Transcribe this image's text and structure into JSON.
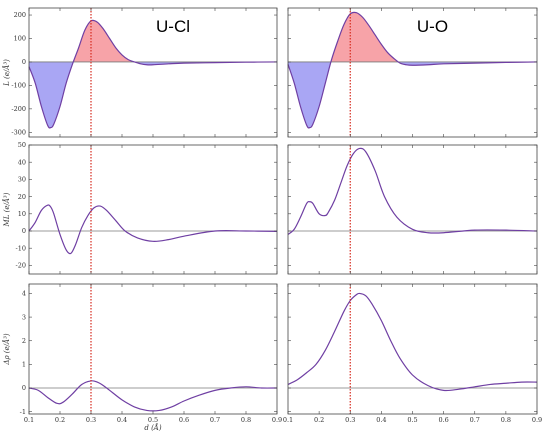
{
  "colors": {
    "curve": "#6f3fa3",
    "positive_fill": "#f7a3a8",
    "negative_fill": "#a9a6f4",
    "cutoff": "#d62a1e",
    "zero_line": "#7a7a7a",
    "frame": "#444444"
  },
  "chart_data": [
    {
      "id": "ucl-l",
      "type": "area",
      "title": "U-Cl",
      "ylabel": "L (e/Å³)",
      "xlabel": "",
      "xlim": [
        0.1,
        0.9
      ],
      "ylim": [
        -320,
        230
      ],
      "xticks": [],
      "yticks": [
        200,
        100,
        0,
        -100,
        -200,
        -300
      ],
      "cutoff_x": 0.3,
      "filled": true,
      "x": [
        0.1,
        0.12,
        0.14,
        0.16,
        0.17,
        0.18,
        0.2,
        0.22,
        0.24,
        0.26,
        0.28,
        0.3,
        0.32,
        0.34,
        0.36,
        0.38,
        0.4,
        0.42,
        0.44,
        0.46,
        0.48,
        0.5,
        0.55,
        0.6,
        0.7,
        0.8,
        0.9
      ],
      "y": [
        -20,
        -90,
        -190,
        -270,
        -280,
        -265,
        -190,
        -90,
        -10,
        60,
        135,
        175,
        170,
        140,
        100,
        60,
        30,
        10,
        0,
        -8,
        -12,
        -12,
        -8,
        -5,
        -3,
        -1,
        0
      ]
    },
    {
      "id": "uo-l",
      "type": "area",
      "title": "U-O",
      "ylabel": "",
      "xlabel": "",
      "xlim": [
        0.1,
        0.9
      ],
      "ylim": [
        -320,
        230
      ],
      "xticks": [],
      "yticks": [],
      "cutoff_x": 0.3,
      "filled": true,
      "x": [
        0.1,
        0.12,
        0.14,
        0.16,
        0.17,
        0.18,
        0.2,
        0.22,
        0.24,
        0.26,
        0.28,
        0.3,
        0.32,
        0.34,
        0.36,
        0.38,
        0.4,
        0.42,
        0.44,
        0.46,
        0.48,
        0.5,
        0.55,
        0.6,
        0.7,
        0.8,
        0.9
      ],
      "y": [
        -10,
        -90,
        -190,
        -270,
        -280,
        -265,
        -190,
        -90,
        10,
        90,
        160,
        205,
        210,
        190,
        155,
        115,
        75,
        40,
        15,
        -5,
        -12,
        -14,
        -12,
        -8,
        -5,
        -2,
        0
      ]
    },
    {
      "id": "ucl-m",
      "type": "line",
      "title": "",
      "ylabel": "ML (e/Å³)",
      "xlabel": "",
      "xlim": [
        0.1,
        0.9
      ],
      "ylim": [
        -25,
        50
      ],
      "xticks": [],
      "yticks": [
        50,
        40,
        30,
        20,
        10,
        0,
        -10,
        -20
      ],
      "cutoff_x": 0.3,
      "filled": false,
      "x": [
        0.1,
        0.12,
        0.14,
        0.16,
        0.17,
        0.18,
        0.2,
        0.22,
        0.235,
        0.25,
        0.27,
        0.29,
        0.31,
        0.33,
        0.35,
        0.38,
        0.41,
        0.45,
        0.5,
        0.55,
        0.6,
        0.7,
        0.8,
        0.9
      ],
      "y": [
        0,
        5,
        12,
        15,
        14,
        10,
        -2,
        -11,
        -13,
        -8,
        2,
        9,
        13.5,
        14.5,
        12,
        6,
        0,
        -4,
        -6,
        -5,
        -3,
        0,
        0,
        -0.2
      ]
    },
    {
      "id": "uo-m",
      "type": "line",
      "title": "",
      "ylabel": "",
      "xlabel": "",
      "xlim": [
        0.1,
        0.9
      ],
      "ylim": [
        -25,
        50
      ],
      "xticks": [],
      "yticks": [],
      "cutoff_x": 0.3,
      "filled": false,
      "x": [
        0.1,
        0.12,
        0.14,
        0.16,
        0.17,
        0.18,
        0.2,
        0.22,
        0.23,
        0.25,
        0.27,
        0.29,
        0.31,
        0.33,
        0.35,
        0.38,
        0.41,
        0.45,
        0.5,
        0.55,
        0.6,
        0.7,
        0.8,
        0.9
      ],
      "y": [
        -2,
        1,
        8,
        16,
        17,
        16,
        10,
        9,
        11,
        18,
        28,
        38,
        45,
        48,
        46,
        35,
        20,
        8,
        1,
        -1,
        -1,
        0.5,
        0.5,
        0
      ]
    },
    {
      "id": "ucl-r",
      "type": "line",
      "title": "",
      "ylabel": "Δρ (e/Å³)",
      "xlabel": "d (Å)",
      "xlim": [
        0.1,
        0.9
      ],
      "ylim": [
        -1.1,
        4.4
      ],
      "xticks": [
        "0.1",
        "0.2",
        "0.3",
        "0.4",
        "0.5",
        "0.6",
        "0.7",
        "0.8",
        "0.9"
      ],
      "yticks": [
        4,
        3,
        2,
        1,
        0,
        -1
      ],
      "cutoff_x": 0.3,
      "filled": false,
      "x": [
        0.1,
        0.13,
        0.16,
        0.19,
        0.21,
        0.24,
        0.27,
        0.3,
        0.32,
        0.34,
        0.37,
        0.4,
        0.44,
        0.48,
        0.52,
        0.56,
        0.6,
        0.65,
        0.7,
        0.75,
        0.8,
        0.85,
        0.9
      ],
      "y": [
        0,
        -0.1,
        -0.4,
        -0.65,
        -0.6,
        -0.25,
        0.15,
        0.3,
        0.25,
        0.1,
        -0.2,
        -0.5,
        -0.8,
        -0.95,
        -0.95,
        -0.8,
        -0.55,
        -0.3,
        -0.1,
        0,
        0.05,
        0,
        0
      ]
    },
    {
      "id": "uo-r",
      "type": "line",
      "title": "",
      "ylabel": "",
      "xlabel": "",
      "xlim": [
        0.1,
        0.9
      ],
      "ylim": [
        -1.1,
        4.4
      ],
      "xticks": [
        "0.1",
        "0.2",
        "0.3",
        "0.4",
        "0.5",
        "0.6",
        "0.7",
        "0.8",
        "0.9"
      ],
      "yticks": [],
      "cutoff_x": 0.3,
      "filled": false,
      "x": [
        0.1,
        0.13,
        0.16,
        0.19,
        0.22,
        0.25,
        0.28,
        0.3,
        0.32,
        0.33,
        0.35,
        0.37,
        0.4,
        0.43,
        0.46,
        0.5,
        0.55,
        0.6,
        0.65,
        0.7,
        0.75,
        0.8,
        0.85,
        0.9
      ],
      "y": [
        0.15,
        0.35,
        0.65,
        1.0,
        1.6,
        2.4,
        3.25,
        3.7,
        3.95,
        4.0,
        3.9,
        3.55,
        2.85,
        2.0,
        1.25,
        0.55,
        0.1,
        -0.1,
        -0.05,
        0.05,
        0.15,
        0.2,
        0.25,
        0.25
      ]
    }
  ]
}
